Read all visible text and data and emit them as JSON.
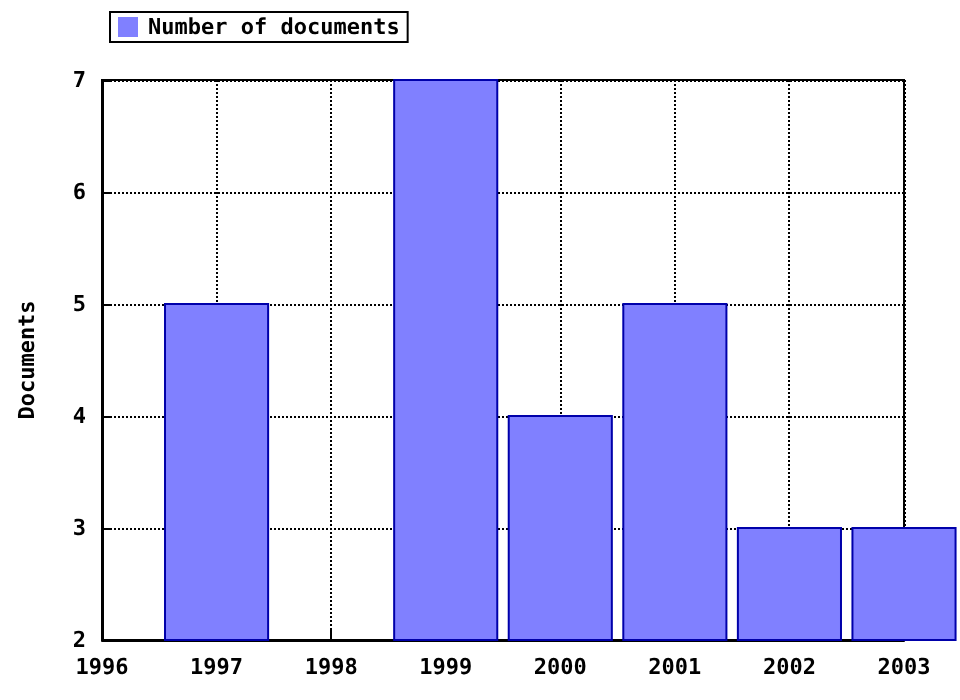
{
  "chart_data": {
    "type": "bar",
    "x": [
      1997,
      1998,
      1999,
      2000,
      2001,
      2002,
      2003
    ],
    "series": [
      {
        "name": "Number of documents",
        "color": "#8080ff",
        "values": [
          5,
          null,
          7,
          4,
          5,
          3,
          3
        ]
      }
    ],
    "ylabel": "Documents",
    "xlim": [
      1996,
      2003
    ],
    "xticks": [
      1996,
      1997,
      1998,
      1999,
      2000,
      2001,
      2002,
      2003
    ],
    "ylim": [
      2,
      7
    ],
    "yticks": [
      2,
      3,
      4,
      5,
      6,
      7
    ],
    "grid": true,
    "legend": "top left"
  }
}
